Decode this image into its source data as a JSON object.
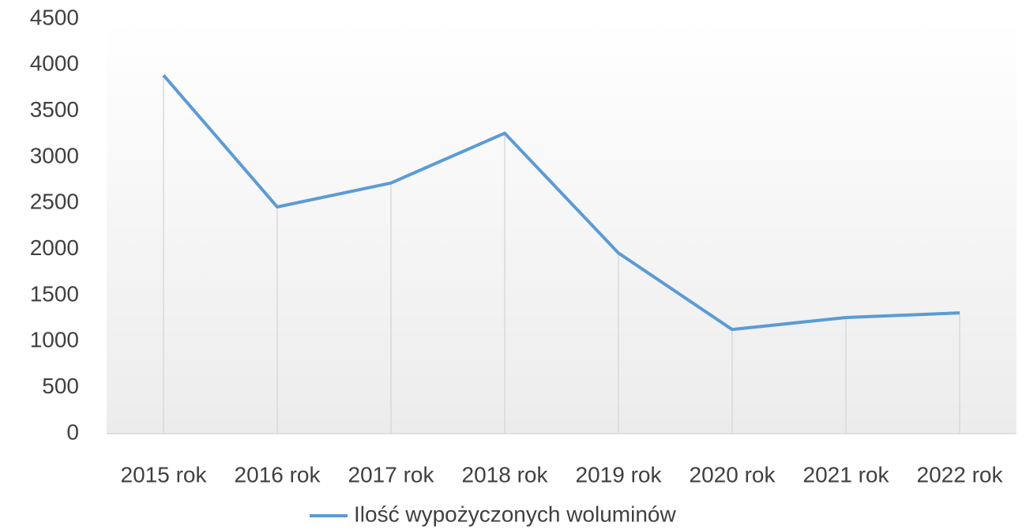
{
  "chart_data": {
    "type": "line",
    "categories": [
      "2015 rok",
      "2016 rok",
      "2017 rok",
      "2018 rok",
      "2019 rok",
      "2020 rok",
      "2021 rok",
      "2022 rok"
    ],
    "series": [
      {
        "name": "Ilość wypożyczonych woluminów",
        "color": "#5b9bd5",
        "values": [
          3890,
          2460,
          2720,
          3260,
          1960,
          1130,
          1260,
          1310
        ]
      }
    ],
    "ylim": [
      0,
      4500
    ],
    "yticks": [
      0,
      500,
      1000,
      1500,
      2000,
      2500,
      3000,
      3500,
      4000,
      4500
    ],
    "drop_lines": true,
    "legend": "bottom"
  }
}
